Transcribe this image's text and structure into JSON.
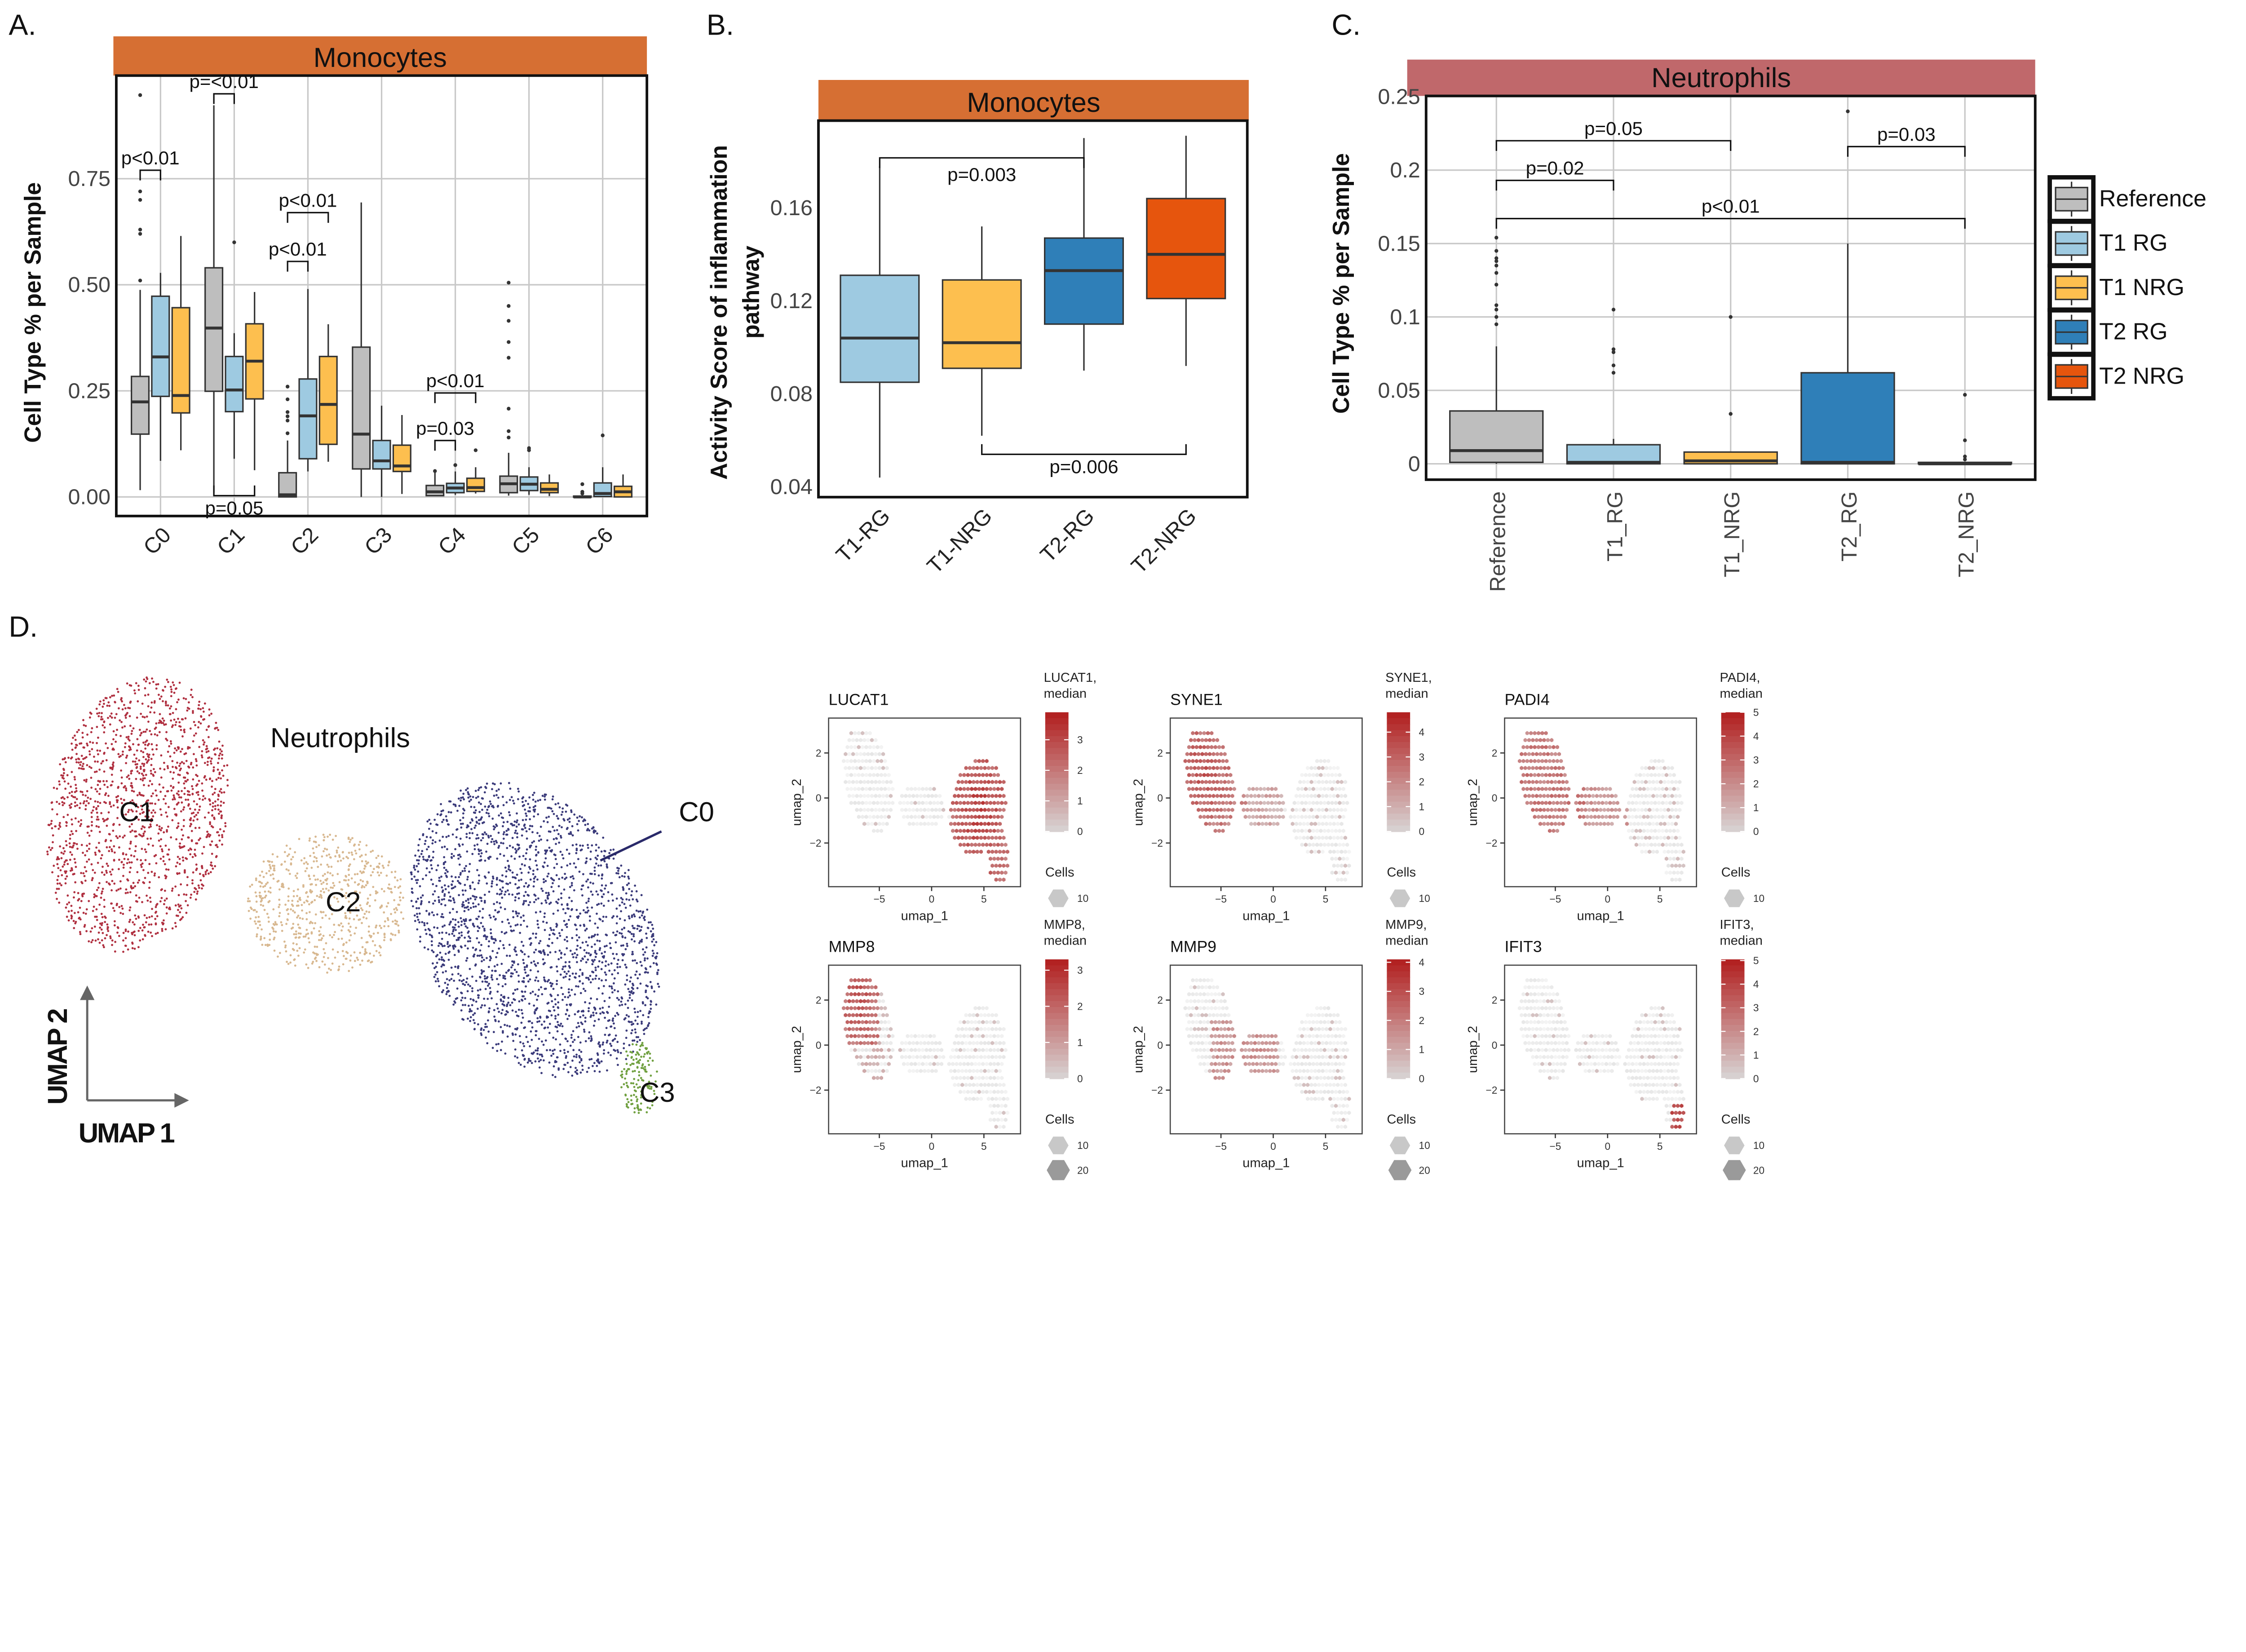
{
  "panel_letters": {
    "a": "A.",
    "b": "B.",
    "c": "C.",
    "d": "D."
  },
  "chart_data": [
    {
      "type": "box",
      "panel": "A",
      "strip": "Monocytes",
      "strip_color": "#d66f33",
      "ylabel": "Cell Type % per Sample",
      "ylim": [
        -0.045,
        0.993
      ],
      "yticks": [
        0,
        0.25,
        0.5,
        0.75
      ],
      "ytick_labels": [
        "0.00",
        "0.25",
        "0.50",
        "0.75"
      ],
      "grid": true,
      "color_by": "group",
      "colors": [
        "#bebebe",
        "#9ecae1",
        "#fdbf4f"
      ],
      "categories": [
        "C0",
        "C1",
        "C2",
        "C3",
        "C4",
        "C5",
        "C6"
      ],
      "boxes": [
        [
          {
            "s": [
              0.016,
              0.148,
              0.224,
              0.284,
              0.488
            ],
            "o": [
              0.947,
              0.72,
              0.7,
              0.63,
              0.62,
              0.51
            ]
          },
          {
            "s": [
              0.085,
              0.237,
              0.33,
              0.473,
              0.528
            ],
            "o": []
          },
          {
            "s": [
              0.11,
              0.198,
              0.239,
              0.446,
              0.615
            ],
            "o": []
          }
        ],
        [
          {
            "s": [
              0.01,
              0.249,
              0.398,
              0.54,
              0.923
            ],
            "o": []
          },
          {
            "s": [
              0.09,
              0.201,
              0.252,
              0.331,
              0.386
            ],
            "o": [
              0.6
            ]
          },
          {
            "s": [
              0.063,
              0.231,
              0.32,
              0.408,
              0.483
            ],
            "o": []
          }
        ],
        [
          {
            "s": [
              0,
              0,
              0.005,
              0.057,
              0.133
            ],
            "o": [
              0.26,
              0.23,
              0.2,
              0.19,
              0.18,
              0.15
            ]
          },
          {
            "s": [
              0.06,
              0.09,
              0.191,
              0.278,
              0.49
            ],
            "o": []
          },
          {
            "s": [
              0.083,
              0.124,
              0.218,
              0.331,
              0.407
            ],
            "o": []
          }
        ],
        [
          {
            "s": [
              0,
              0.066,
              0.148,
              0.353,
              0.694
            ],
            "o": []
          },
          {
            "s": [
              0,
              0.066,
              0.085,
              0.133,
              0.215
            ],
            "o": []
          },
          {
            "s": [
              0.007,
              0.06,
              0.073,
              0.122,
              0.193
            ],
            "o": []
          }
        ],
        [
          {
            "s": [
              0.002,
              0.003,
              0.012,
              0.027,
              0.06
            ],
            "o": [
              0.061
            ]
          },
          {
            "s": [
              0.005,
              0.01,
              0.021,
              0.032,
              0.06
            ],
            "o": [
              0.075
            ]
          },
          {
            "s": [
              0.008,
              0.013,
              0.022,
              0.044,
              0.07
            ],
            "o": [
              0.11
            ]
          }
        ],
        [
          {
            "s": [
              0.003,
              0.01,
              0.031,
              0.049,
              0.104
            ],
            "o": [
              0.505,
              0.45,
              0.415,
              0.365,
              0.328,
              0.208,
              0.155,
              0.14
            ]
          },
          {
            "s": [
              0.005,
              0.015,
              0.03,
              0.047,
              0.07
            ],
            "o": [
              0.11,
              0.115
            ]
          },
          {
            "s": [
              0.002,
              0.01,
              0.018,
              0.033,
              0.053
            ],
            "o": []
          }
        ],
        [
          {
            "s": [
              0,
              0,
              0,
              0.002,
              0.003
            ],
            "o": [
              0.03,
              0.012,
              0.008
            ]
          },
          {
            "s": [
              0,
              0.001,
              0.008,
              0.033,
              0.07
            ],
            "o": [
              0.145
            ]
          },
          {
            "s": [
              0,
              0,
              0.012,
              0.025,
              0.053
            ],
            "o": []
          }
        ]
      ],
      "annotations": [
        {
          "a": [
            0,
            0
          ],
          "b": [
            0,
            1
          ],
          "y": 0.77,
          "label": "p<0.01",
          "pos": "top"
        },
        {
          "a": [
            1,
            0
          ],
          "b": [
            1,
            1
          ],
          "y": 0.95,
          "label": "p=<0.01",
          "pos": "top"
        },
        {
          "a": [
            1,
            0
          ],
          "b": [
            1,
            2
          ],
          "y": 0.003,
          "label": "p=0.05",
          "pos": "bottom"
        },
        {
          "a": [
            2,
            0
          ],
          "b": [
            2,
            2
          ],
          "y": 0.67,
          "label": "p<0.01",
          "pos": "top"
        },
        {
          "a": [
            2,
            0
          ],
          "b": [
            2,
            1
          ],
          "y": 0.555,
          "label": "p<0.01",
          "pos": "top"
        },
        {
          "a": [
            4,
            0
          ],
          "b": [
            4,
            2
          ],
          "y": 0.245,
          "label": "p<0.01",
          "pos": "top"
        },
        {
          "a": [
            4,
            0
          ],
          "b": [
            4,
            1
          ],
          "y": 0.133,
          "label": "p=0.03",
          "pos": "top"
        }
      ]
    },
    {
      "type": "box",
      "panel": "B",
      "strip": "Monocytes",
      "strip_color": "#d66f33",
      "ylabel": [
        "Activity Score of inflammation",
        "pathway"
      ],
      "ylim": [
        0.0356,
        0.1975
      ],
      "yticks": [
        0.04,
        0.08,
        0.12,
        0.16
      ],
      "ytick_labels": [
        "0.04",
        "0.08",
        "0.12",
        "0.16"
      ],
      "grid": false,
      "color_by": "category",
      "colors": [
        "#9ecae1",
        "#fdbf4f",
        "#2f7fb8",
        "#e6550d"
      ],
      "categories": [
        "T1-RG",
        "T1-NRG",
        "T2-RG",
        "T2-NRG"
      ],
      "boxes": [
        [
          {
            "s": [
              0.044,
              0.085,
              0.104,
              0.131,
              0.178
            ],
            "o": []
          }
        ],
        [
          {
            "s": [
              0.062,
              0.091,
              0.102,
              0.129,
              0.152
            ],
            "o": []
          }
        ],
        [
          {
            "s": [
              0.09,
              0.11,
              0.133,
              0.147,
              0.19
            ],
            "o": []
          }
        ],
        [
          {
            "s": [
              0.092,
              0.121,
              0.14,
              0.164,
              0.191
            ],
            "o": []
          }
        ]
      ],
      "annotations": [
        {
          "a": [
            0,
            0
          ],
          "b": [
            2,
            0
          ],
          "y": 0.1815,
          "label": "p=0.003",
          "pos": "top",
          "label_below": true
        },
        {
          "a": [
            1,
            0
          ],
          "b": [
            3,
            0
          ],
          "y": 0.054,
          "label": "p=0.006",
          "pos": "bottom"
        }
      ]
    },
    {
      "type": "box",
      "panel": "C",
      "strip": "Neutrophils",
      "strip_color": "#c0686b",
      "ylabel": "Cell Type % per Sample",
      "ylim": [
        -0.0108,
        0.2505
      ],
      "yticks": [
        0,
        0.05,
        0.1,
        0.15,
        0.2,
        0.25
      ],
      "ytick_labels": [
        "0",
        "0.05",
        "0.1",
        "0.15",
        "0.2",
        "0.25"
      ],
      "grid": true,
      "color_by": "category",
      "colors": [
        "#bebebe",
        "#9ecae1",
        "#fdbf4f",
        "#2f7fb8",
        "#e6550d"
      ],
      "categories": [
        "Reference",
        "T1_RG",
        "T1_NRG",
        "T2_RG",
        "T2_NRG"
      ],
      "boxes": [
        [
          {
            "s": [
              0,
              0.001,
              0.009,
              0.036,
              0.08
            ],
            "o": [
              0.154,
              0.145,
              0.14,
              0.138,
              0.135,
              0.13,
              0.122,
              0.108,
              0.105,
              0.1,
              0.095
            ]
          }
        ],
        [
          {
            "s": [
              0,
              0,
              0.001,
              0.013,
              0.017
            ],
            "o": [
              0.105,
              0.078,
              0.076,
              0.067,
              0.062
            ]
          }
        ],
        [
          {
            "s": [
              0,
              0,
              0.002,
              0.008,
              0.008
            ],
            "o": [
              0.1,
              0.034
            ]
          }
        ],
        [
          {
            "s": [
              0,
              0,
              0.001,
              0.062,
              0.15
            ],
            "o": [
              0.24
            ]
          }
        ],
        [
          {
            "s": [
              0,
              0,
              0,
              0.001,
              0.001
            ],
            "o": [
              0.047,
              0.016,
              0.005,
              0.003
            ]
          }
        ]
      ],
      "annotations": [
        {
          "a": [
            0,
            0
          ],
          "b": [
            2,
            0
          ],
          "y": 0.22,
          "label": "p=0.05",
          "pos": "top"
        },
        {
          "a": [
            0,
            0
          ],
          "b": [
            1,
            0
          ],
          "y": 0.193,
          "label": "p=0.02",
          "pos": "top"
        },
        {
          "a": [
            3,
            0
          ],
          "b": [
            4,
            0
          ],
          "y": 0.216,
          "label": "p=0.03",
          "pos": "top"
        },
        {
          "a": [
            0,
            0
          ],
          "b": [
            4,
            0
          ],
          "y": 0.167,
          "label": "p<0.01",
          "pos": "top"
        }
      ],
      "legend": {
        "position": "right",
        "entries": [
          {
            "label": "Reference",
            "color": "#bebebe"
          },
          {
            "label": "T1 RG",
            "color": "#9ecae1"
          },
          {
            "label": "T1 NRG",
            "color": "#fdbf4f"
          },
          {
            "label": "T2 RG",
            "color": "#2f7fb8"
          },
          {
            "label": "T2 NRG",
            "color": "#e6550d"
          }
        ]
      }
    },
    {
      "type": "scatter",
      "panel": "D",
      "title": "Neutrophils",
      "xlabel": "UMAP 1",
      "ylabel": "UMAP 2",
      "clusters": [
        {
          "label": "C0",
          "color": "#3a3a7a"
        },
        {
          "label": "C1",
          "color": "#b03040"
        },
        {
          "label": "C2",
          "color": "#d8b890"
        },
        {
          "label": "C3",
          "color": "#70a040"
        }
      ]
    },
    {
      "type": "hexbin",
      "panels": [
        {
          "gene": "LUCAT1",
          "legend_title": [
            "LUCAT1,",
            "median"
          ],
          "scale_max": 3.9,
          "color_ticks": [
            "0",
            "1",
            "2",
            "3"
          ],
          "cells": [
            "10"
          ]
        },
        {
          "gene": "SYNE1",
          "legend_title": [
            "SYNE1,",
            "median"
          ],
          "scale_max": 4.8,
          "color_ticks": [
            "0",
            "1",
            "2",
            "3",
            "4"
          ],
          "cells": [
            "10"
          ]
        },
        {
          "gene": "PADI4",
          "legend_title": [
            "PADI4,",
            "median"
          ],
          "scale_max": 5.0,
          "color_ticks": [
            "0",
            "1",
            "2",
            "3",
            "4",
            "5"
          ],
          "cells": [
            "10"
          ]
        },
        {
          "gene": "MMP8",
          "legend_title": [
            "MMP8,",
            "median"
          ],
          "scale_max": 3.3,
          "color_ticks": [
            "0",
            "1",
            "2",
            "3"
          ],
          "cells": [
            "10",
            "20"
          ]
        },
        {
          "gene": "MMP9",
          "legend_title": [
            "MMP9,",
            "median"
          ],
          "scale_max": 4.1,
          "color_ticks": [
            "0",
            "1",
            "2",
            "3",
            "4"
          ],
          "cells": [
            "10",
            "20"
          ]
        },
        {
          "gene": "IFIT3",
          "legend_title": [
            "IFIT3,",
            "median"
          ],
          "scale_max": 5.05,
          "color_ticks": [
            "0",
            "1",
            "2",
            "3",
            "4",
            "5"
          ],
          "cells": [
            "10",
            "20"
          ]
        }
      ],
      "xlabel": "umap_1",
      "ylabel": "umap_2",
      "xlim": [
        -9.85,
        8.5
      ],
      "ylim": [
        -3.94,
        3.55
      ],
      "xticks": [
        -5,
        0,
        5
      ],
      "xtick_labels": [
        "−5",
        "0",
        "5"
      ],
      "yticks": [
        -2,
        0,
        2
      ],
      "ytick_labels": [
        "−2",
        "0",
        "2"
      ],
      "cells_title": "Cells",
      "low_color": "#d9d9d9",
      "high_color": "#b22222"
    }
  ]
}
